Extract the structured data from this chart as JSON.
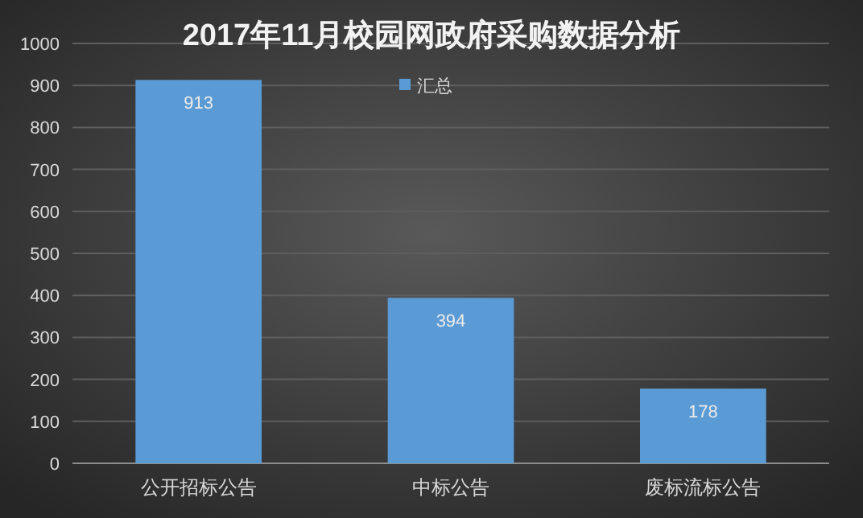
{
  "chart_data": {
    "type": "bar",
    "title": "2017年11月校园网政府采购数据分析",
    "categories": [
      "公开招标公告",
      "中标公告",
      "废标流标公告"
    ],
    "series": [
      {
        "name": "汇总",
        "color": "#5b9bd5",
        "values": [
          913,
          394,
          178
        ]
      }
    ],
    "ylim": [
      0,
      1000
    ],
    "yticks": [
      0,
      100,
      200,
      300,
      400,
      500,
      600,
      700,
      800,
      900,
      1000
    ],
    "grid": "y",
    "legend": "top",
    "data_labels": true
  }
}
